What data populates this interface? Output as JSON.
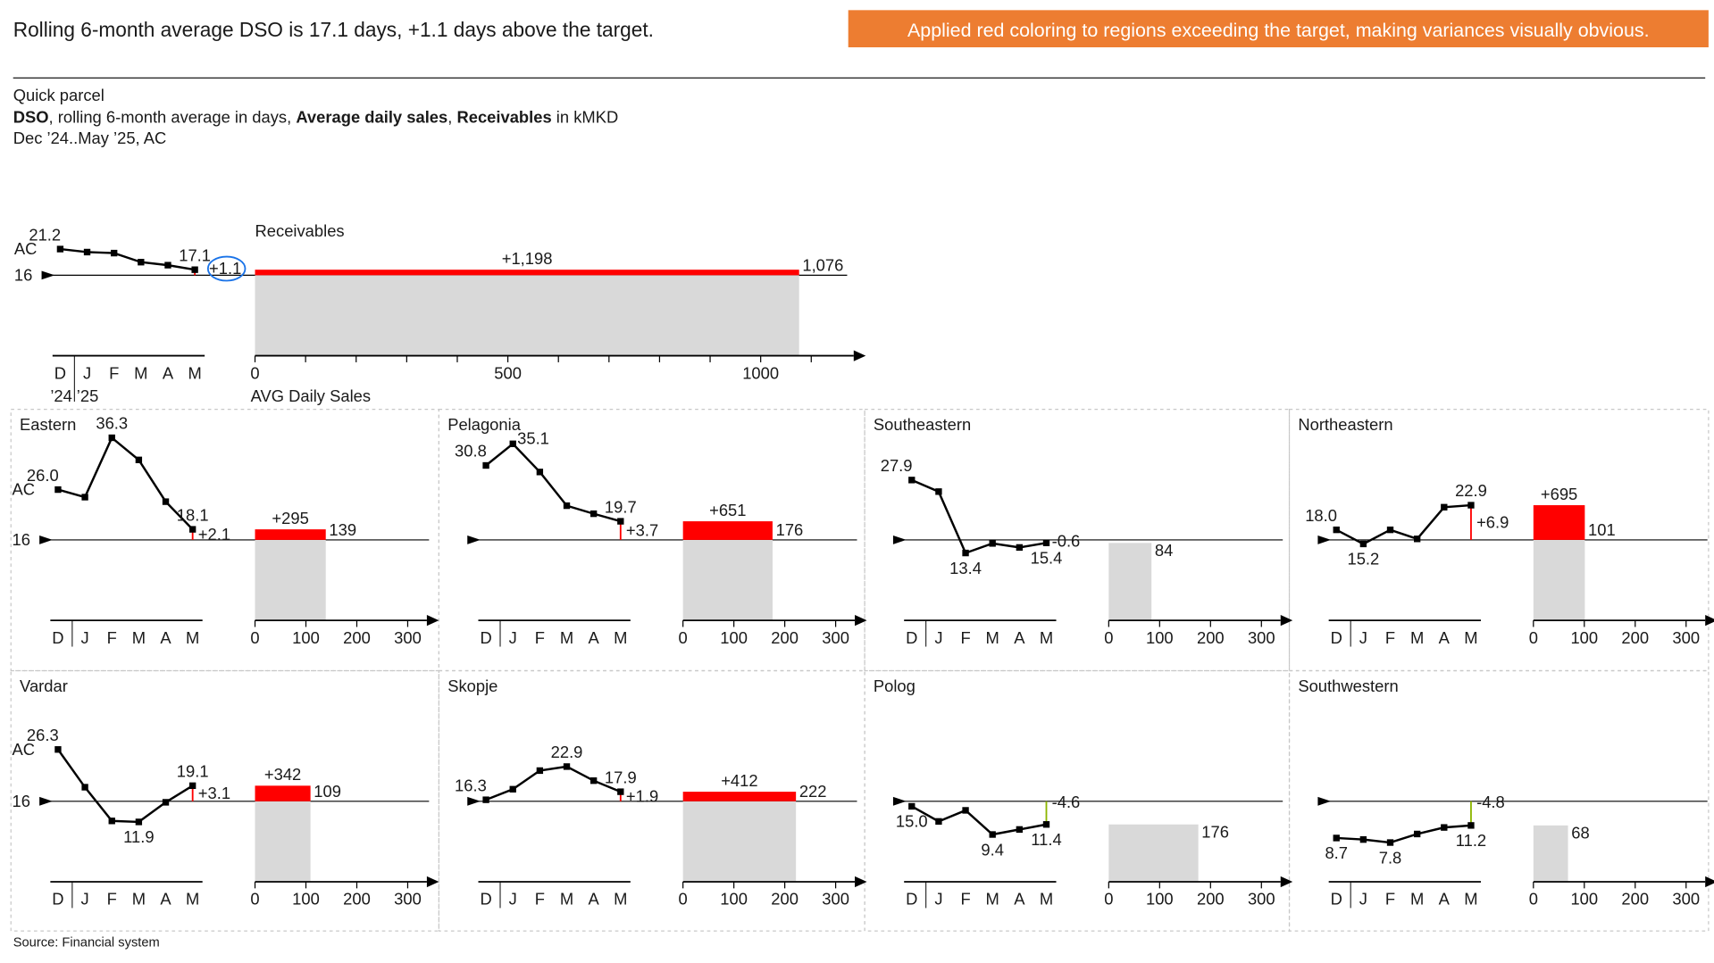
{
  "header": {
    "headline": "Rolling 6-month average DSO is 17.1 days, +1.1 days above the target.",
    "callout": "Applied red coloring to regions exceeding the target, making variances visually obvious.",
    "callout_color": "#ED7D31",
    "company": "Quick parcel",
    "measures_bold_1": "DSO",
    "measures_text_1": ", rolling 6-month average in days, ",
    "measures_bold_2": "Average daily sales",
    "measures_text_2": ", ",
    "measures_bold_3": "Receivables",
    "measures_text_3": " in kMKD",
    "period": "Dec ’24..May ’25, AC"
  },
  "footer": {
    "source": "Source: Financial system"
  },
  "colors": {
    "positive_variance": "#FF0000",
    "negative_variance": "#8DB600",
    "bar": "#D9D9D9",
    "highlight": "#1A73E8"
  },
  "chart_data": {
    "type": "line+bar small multiples",
    "months": [
      "D",
      "J",
      "F",
      "M",
      "A",
      "M"
    ],
    "year_labels": [
      "’24",
      "’25"
    ],
    "target": 16,
    "target_label": "16",
    "scenario_label": "AC",
    "total": {
      "receivables_title": "Receivables",
      "sales_axis_title": "AVG Daily Sales",
      "dso": [
        21.2,
        20.6,
        20.4,
        18.6,
        18.0,
        17.1
      ],
      "labels": [
        {
          "i": 0,
          "text": "21.2",
          "pos": "above"
        },
        {
          "i": 5,
          "text": "17.1",
          "pos": "above"
        }
      ],
      "variance": "+1.1",
      "sales": 1076,
      "sales_label": "1,076",
      "receivables_delta": "+1,198",
      "sales_ticks": [
        "0",
        "500",
        "1000"
      ],
      "sales_tick_values": [
        0,
        500,
        1000
      ],
      "sales_max": 1200
    },
    "regions": [
      {
        "name": "Eastern",
        "dso": [
          26.0,
          24.5,
          36.3,
          31.9,
          23.6,
          18.1
        ],
        "labels": [
          {
            "i": 0,
            "text": "26.0",
            "pos": "above"
          },
          {
            "i": 2,
            "text": "36.3",
            "pos": "above"
          },
          {
            "i": 5,
            "text": "18.1",
            "pos": "above"
          }
        ],
        "variance": "+2.1",
        "sales": 139,
        "sales_label": "139",
        "receivables_delta": "+295"
      },
      {
        "name": "Pelagonia",
        "dso": [
          30.8,
          35.1,
          29.5,
          22.8,
          21.2,
          19.7
        ],
        "labels": [
          {
            "i": 0,
            "text": "30.8",
            "pos": "above"
          },
          {
            "i": 1,
            "text": "35.1",
            "pos": "right"
          },
          {
            "i": 5,
            "text": "19.7",
            "pos": "above"
          }
        ],
        "variance": "+3.7",
        "sales": 176,
        "sales_label": "176",
        "receivables_delta": "+651"
      },
      {
        "name": "Southeastern",
        "dso": [
          27.9,
          25.6,
          13.4,
          15.3,
          14.5,
          15.4
        ],
        "labels": [
          {
            "i": 0,
            "text": "27.9",
            "pos": "above"
          },
          {
            "i": 2,
            "text": "13.4",
            "pos": "below"
          },
          {
            "i": 5,
            "text": "15.4",
            "pos": "below"
          }
        ],
        "variance": "-0.6",
        "sales": 84,
        "sales_label": "84",
        "receivables_delta": ""
      },
      {
        "name": "Northeastern",
        "dso": [
          18.0,
          15.2,
          18.0,
          16.2,
          22.5,
          22.9
        ],
        "labels": [
          {
            "i": 0,
            "text": "18.0",
            "pos": "above"
          },
          {
            "i": 1,
            "text": "15.2",
            "pos": "below"
          },
          {
            "i": 5,
            "text": "22.9",
            "pos": "above"
          }
        ],
        "variance": "+6.9",
        "sales": 101,
        "sales_label": "101",
        "receivables_delta": "+695"
      },
      {
        "name": "Vardar",
        "dso": [
          26.3,
          18.8,
          12.1,
          11.9,
          15.8,
          19.1
        ],
        "labels": [
          {
            "i": 0,
            "text": "26.3",
            "pos": "above"
          },
          {
            "i": 3,
            "text": "11.9",
            "pos": "below"
          },
          {
            "i": 5,
            "text": "19.1",
            "pos": "above"
          }
        ],
        "variance": "+3.1",
        "sales": 109,
        "sales_label": "109",
        "receivables_delta": "+342"
      },
      {
        "name": "Skopje",
        "dso": [
          16.3,
          18.4,
          22.1,
          22.9,
          20.1,
          17.9
        ],
        "labels": [
          {
            "i": 0,
            "text": "16.3",
            "pos": "above"
          },
          {
            "i": 3,
            "text": "22.9",
            "pos": "above"
          },
          {
            "i": 5,
            "text": "17.9",
            "pos": "above"
          }
        ],
        "variance": "+1.9",
        "sales": 222,
        "sales_label": "222",
        "receivables_delta": "+412"
      },
      {
        "name": "Polog",
        "dso": [
          15.0,
          12.0,
          14.2,
          9.4,
          10.4,
          11.4
        ],
        "labels": [
          {
            "i": 0,
            "text": "15.0",
            "pos": "below"
          },
          {
            "i": 3,
            "text": "9.4",
            "pos": "below"
          },
          {
            "i": 5,
            "text": "11.4",
            "pos": "below"
          }
        ],
        "variance": "-4.6",
        "sales": 176,
        "sales_label": "176",
        "receivables_delta": ""
      },
      {
        "name": "Southwestern",
        "dso": [
          8.7,
          8.4,
          7.8,
          9.5,
          10.8,
          11.2
        ],
        "labels": [
          {
            "i": 0,
            "text": "8.7",
            "pos": "below"
          },
          {
            "i": 2,
            "text": "7.8",
            "pos": "below"
          },
          {
            "i": 5,
            "text": "11.2",
            "pos": "below"
          }
        ],
        "variance": "-4.8",
        "sales": 68,
        "sales_label": "68",
        "receivables_delta": ""
      }
    ],
    "region_sales_ticks": [
      "0",
      "100",
      "200",
      "300"
    ],
    "region_sales_tick_values": [
      0,
      100,
      200,
      300
    ]
  }
}
